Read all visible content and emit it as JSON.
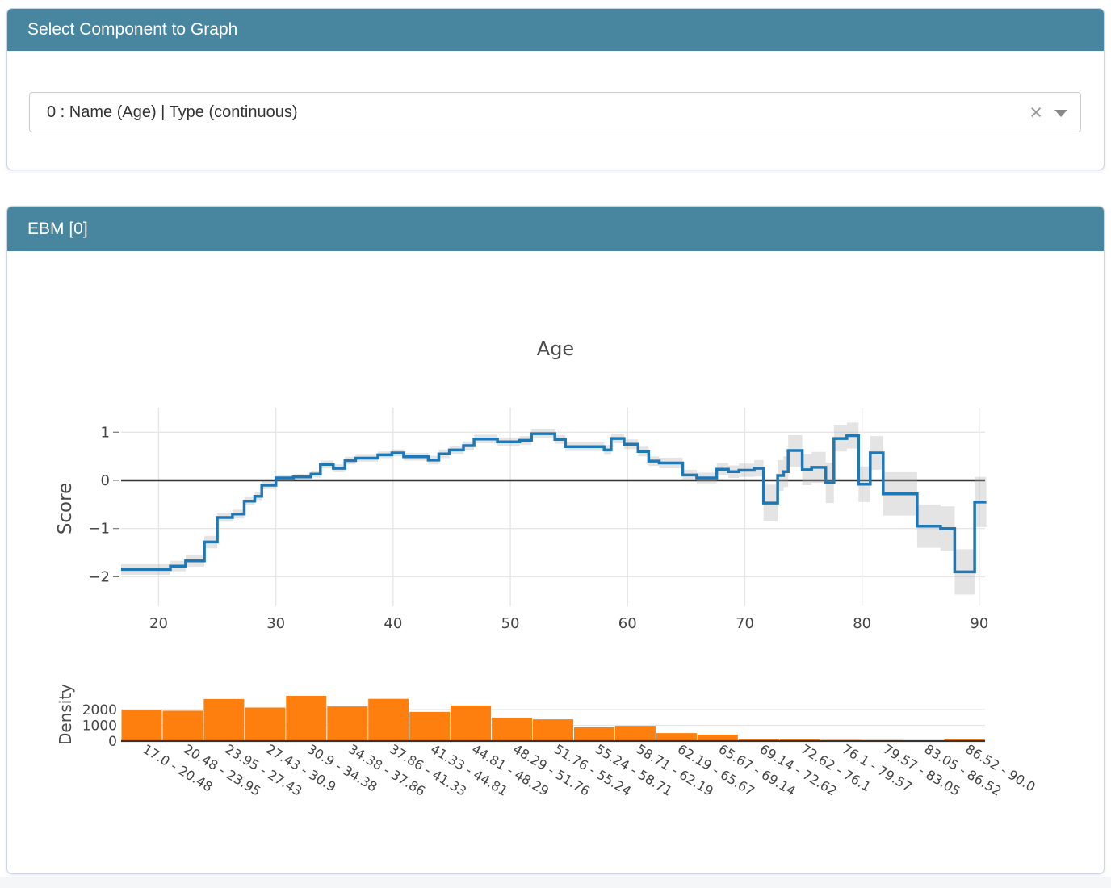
{
  "panel_select": {
    "title": "Select Component to Graph",
    "dropdown": {
      "value": "0 : Name (Age) | Type (continuous)",
      "clear_icon": "×"
    }
  },
  "panel_graph": {
    "title": "EBM [0]"
  },
  "colors": {
    "header_bg": "#47869e",
    "header_text": "#ffffff",
    "panel_border": "#ccd5e8",
    "line": "#1f77b4",
    "band": "rgba(170,170,170,0.32)",
    "bars": "#ff7f0e",
    "axis_dark": "#333333",
    "grid": "#e6e6e6",
    "tick_text": "#444444"
  },
  "chart_data": [
    {
      "type": "line",
      "subtype": "step-with-error-band",
      "title": "Age",
      "xlabel": "",
      "ylabel": "Score",
      "xlim": [
        16.8,
        90.6
      ],
      "ylim": [
        -2.6,
        1.5
      ],
      "xticks": [
        20,
        30,
        40,
        50,
        60,
        70,
        80,
        90
      ],
      "yticks": [
        1,
        0,
        -1,
        -2
      ],
      "zero_line": true,
      "grid": true,
      "legend_position": "none",
      "x_end": 90.6,
      "steps": [
        [
          16.8,
          -1.85,
          -1.96,
          -1.74
        ],
        [
          21.0,
          -1.78,
          -1.89,
          -1.67
        ],
        [
          22.3,
          -1.67,
          -1.79,
          -1.55
        ],
        [
          23.9,
          -1.28,
          -1.41,
          -1.15
        ],
        [
          25.0,
          -0.77,
          -0.86,
          -0.68
        ],
        [
          26.3,
          -0.7,
          -0.79,
          -0.61
        ],
        [
          27.3,
          -0.43,
          -0.51,
          -0.35
        ],
        [
          28.2,
          -0.33,
          -0.41,
          -0.25
        ],
        [
          28.8,
          -0.1,
          -0.18,
          -0.02
        ],
        [
          30.0,
          0.05,
          -0.01,
          0.11
        ],
        [
          31.5,
          0.07,
          0.01,
          0.13
        ],
        [
          33.0,
          0.13,
          0.06,
          0.2
        ],
        [
          33.8,
          0.33,
          0.25,
          0.41
        ],
        [
          34.9,
          0.25,
          0.17,
          0.33
        ],
        [
          35.9,
          0.41,
          0.33,
          0.49
        ],
        [
          36.8,
          0.46,
          0.39,
          0.53
        ],
        [
          38.7,
          0.53,
          0.46,
          0.6
        ],
        [
          39.9,
          0.57,
          0.5,
          0.64
        ],
        [
          40.9,
          0.49,
          0.41,
          0.57
        ],
        [
          43.0,
          0.42,
          0.33,
          0.51
        ],
        [
          43.9,
          0.55,
          0.46,
          0.64
        ],
        [
          44.8,
          0.63,
          0.54,
          0.72
        ],
        [
          46.0,
          0.72,
          0.63,
          0.81
        ],
        [
          46.9,
          0.86,
          0.77,
          0.95
        ],
        [
          48.9,
          0.8,
          0.71,
          0.89
        ],
        [
          50.8,
          0.83,
          0.74,
          0.92
        ],
        [
          51.8,
          0.97,
          0.88,
          1.06
        ],
        [
          53.8,
          0.85,
          0.76,
          0.94
        ],
        [
          54.7,
          0.7,
          0.61,
          0.79
        ],
        [
          58.0,
          0.63,
          0.53,
          0.73
        ],
        [
          58.6,
          0.87,
          0.77,
          0.97
        ],
        [
          59.7,
          0.75,
          0.65,
          0.85
        ],
        [
          60.9,
          0.6,
          0.5,
          0.7
        ],
        [
          61.8,
          0.4,
          0.3,
          0.5
        ],
        [
          62.7,
          0.36,
          0.25,
          0.47
        ],
        [
          64.7,
          0.11,
          0.0,
          0.22
        ],
        [
          65.9,
          0.05,
          -0.06,
          0.16
        ],
        [
          67.6,
          0.23,
          0.1,
          0.36
        ],
        [
          68.6,
          0.18,
          0.05,
          0.31
        ],
        [
          69.5,
          0.21,
          0.07,
          0.35
        ],
        [
          70.8,
          0.25,
          0.08,
          0.42
        ],
        [
          71.6,
          -0.47,
          -0.85,
          -0.09
        ],
        [
          72.8,
          0.1,
          -0.22,
          0.42
        ],
        [
          73.3,
          0.18,
          -0.14,
          0.5
        ],
        [
          73.7,
          0.62,
          0.28,
          0.94
        ],
        [
          74.9,
          0.22,
          -0.1,
          0.54
        ],
        [
          75.7,
          0.27,
          -0.05,
          0.59
        ],
        [
          76.9,
          -0.05,
          -0.47,
          0.37
        ],
        [
          77.6,
          0.87,
          0.6,
          1.14
        ],
        [
          78.7,
          0.93,
          0.66,
          1.2
        ],
        [
          79.7,
          -0.08,
          -0.45,
          0.29
        ],
        [
          80.7,
          0.57,
          0.22,
          0.92
        ],
        [
          81.8,
          -0.28,
          -0.73,
          0.17
        ],
        [
          84.7,
          -0.95,
          -1.4,
          -0.5
        ],
        [
          86.7,
          -1.0,
          -1.46,
          -0.54
        ],
        [
          87.9,
          -1.9,
          -2.37,
          -1.43
        ],
        [
          89.6,
          -0.45,
          -0.97,
          0.07
        ]
      ]
    },
    {
      "type": "bar",
      "subtype": "histogram",
      "title": "",
      "xlabel": "",
      "ylabel": "Density",
      "yticks": [
        0,
        1000,
        2000
      ],
      "ylim": [
        0,
        3000
      ],
      "grid": true,
      "categories": [
        "17.0 - 20.48",
        "20.48 - 23.95",
        "23.95 - 27.43",
        "27.43 - 30.9",
        "30.9 - 34.38",
        "34.38 - 37.86",
        "37.86 - 41.33",
        "41.33 - 44.81",
        "44.81 - 48.29",
        "48.29 - 51.76",
        "51.76 - 55.24",
        "55.24 - 58.71",
        "58.71 - 62.19",
        "62.19 - 65.67",
        "65.67 - 69.14",
        "69.14 - 72.62",
        "72.62 - 76.1",
        "76.1 - 79.57",
        "79.57 - 83.05",
        "83.05 - 86.52",
        "86.52 - 90.0"
      ],
      "values": [
        2000,
        1930,
        2670,
        2130,
        2870,
        2200,
        2680,
        1850,
        2260,
        1490,
        1380,
        870,
        970,
        510,
        410,
        130,
        110,
        70,
        60,
        45,
        110
      ]
    }
  ]
}
